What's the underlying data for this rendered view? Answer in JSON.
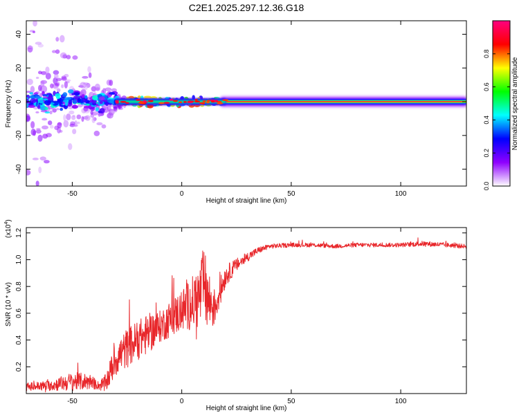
{
  "title": "C2E1.2025.297.12.36.G18",
  "chart_data": [
    {
      "type": "heatmap",
      "xlabel": "Height of straight line (km)",
      "ylabel": "Frequency (Hz)",
      "xlim": [
        -71,
        130
      ],
      "ylim": [
        -50,
        48
      ],
      "xticks": [
        -50,
        0,
        50,
        100
      ],
      "yticks": [
        -40,
        -20,
        0,
        20,
        40
      ],
      "colorbar": {
        "label": "Normalized spectral amplitude",
        "range": [
          0,
          1
        ],
        "ticks": [
          "0.0",
          "0.2",
          "0.4",
          "0.6",
          "0.8"
        ],
        "tick_values": [
          0,
          0.2,
          0.4,
          0.6,
          0.8
        ],
        "colors": [
          "#ffffff",
          "#8f00ff",
          "#0000ff",
          "#00ffff",
          "#00ff00",
          "#ffff00",
          "#ff0000",
          "#ff007f"
        ]
      },
      "ridge": {
        "x_start": -71,
        "x_end": 130,
        "center_frequency": 0,
        "noisy_until_x": -30,
        "transition_until_x": 20,
        "stable_from_x": 20
      }
    },
    {
      "type": "line",
      "xlabel": "Height of straight line (km)",
      "ylabel": "SNR (10 * v/v)",
      "y_multiplier": "(x10",
      "y_multiplier_exp": "4",
      "y_multiplier_close": ")",
      "xlim": [
        -71,
        130
      ],
      "ylim": [
        0,
        1.24
      ],
      "xticks": [
        -50,
        0,
        50,
        100
      ],
      "yticks": [
        "0.2",
        "0.4",
        "0.6",
        "0.8",
        "1.0",
        "1.2"
      ],
      "ytick_values": [
        0.2,
        0.4,
        0.6,
        0.8,
        1.0,
        1.2
      ],
      "series": [
        {
          "color": "#e8262a",
          "x": [
            -71,
            -60,
            -50,
            -42,
            -38,
            -35,
            -30,
            -25,
            -20,
            -15,
            -10,
            -5,
            0,
            5,
            8,
            10,
            12,
            15,
            20,
            25,
            30,
            35,
            40,
            50,
            60,
            70,
            80,
            90,
            100,
            110,
            120,
            130
          ],
          "y": [
            0.05,
            0.06,
            0.09,
            0.09,
            0.06,
            0.07,
            0.26,
            0.34,
            0.4,
            0.45,
            0.5,
            0.56,
            0.62,
            0.68,
            0.72,
            0.82,
            0.7,
            0.64,
            0.88,
            0.96,
            1.02,
            1.07,
            1.1,
            1.11,
            1.11,
            1.1,
            1.11,
            1.11,
            1.11,
            1.12,
            1.11,
            1.1
          ],
          "noise": [
            0.03,
            0.04,
            0.07,
            0.06,
            0.03,
            0.07,
            0.13,
            0.15,
            0.15,
            0.15,
            0.12,
            0.14,
            0.16,
            0.2,
            0.24,
            0.28,
            0.26,
            0.14,
            0.08,
            0.05,
            0.035,
            0.025,
            0.018,
            0.016,
            0.016,
            0.016,
            0.016,
            0.016,
            0.016,
            0.02,
            0.018,
            0.016
          ]
        }
      ]
    }
  ]
}
